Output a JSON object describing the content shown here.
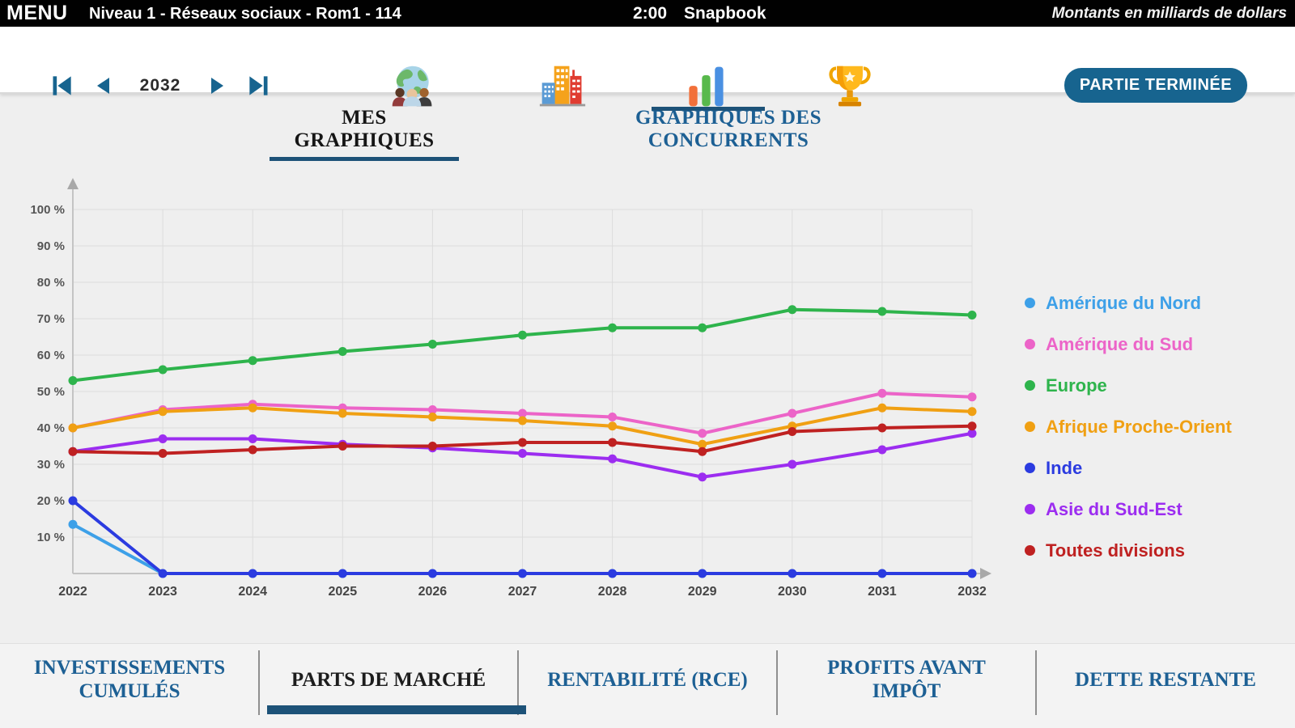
{
  "top_bar": {
    "menu_label": "MENU",
    "title": "Niveau 1 - Réseaux sociaux - Rom1 - 114",
    "time": "2:00",
    "company": "Snapbook",
    "units_note": "Montants en milliards de dollars"
  },
  "toolbar": {
    "year": "2032",
    "nav_icons": [
      "first-year-icon",
      "previous-year-icon",
      "next-year-icon",
      "last-year-icon"
    ],
    "section_icons": [
      "world-markets-icon",
      "company-buildings-icon",
      "charts-icon",
      "trophy-objectives-icon"
    ],
    "active_section": "charts",
    "game_over_label": "PARTIE TERMINÉE"
  },
  "tabs": {
    "my_charts": "MES GRAPHIQUES",
    "competitors": "GRAPHIQUES DES CONCURRENTS",
    "active": "my_charts"
  },
  "chart_data": {
    "type": "line",
    "x": [
      2022,
      2023,
      2024,
      2025,
      2026,
      2027,
      2028,
      2029,
      2030,
      2031,
      2032
    ],
    "yticks": [
      10,
      20,
      30,
      40,
      50,
      60,
      70,
      80,
      90,
      100
    ],
    "y_tick_suffix": " %",
    "ylim": [
      0,
      105
    ],
    "grid": true,
    "legend_position": "right",
    "unit": "%",
    "series": [
      {
        "name": "Amérique du Nord",
        "color": "#3da0e8",
        "values": [
          13.5,
          0,
          0,
          0,
          0,
          0,
          0,
          0,
          0,
          0,
          0
        ]
      },
      {
        "name": "Amérique du Sud",
        "color": "#ec64c8",
        "values": [
          40,
          45,
          46.5,
          45.5,
          45,
          44,
          43,
          38.5,
          44,
          49.5,
          48.5
        ]
      },
      {
        "name": "Europe",
        "color": "#2eb44c",
        "values": [
          53,
          56,
          58.5,
          61,
          63,
          65.5,
          67.5,
          67.5,
          72.5,
          72,
          71
        ]
      },
      {
        "name": "Afrique Proche-Orient",
        "color": "#f0a013",
        "values": [
          40,
          44.5,
          45.5,
          44,
          43,
          42,
          40.5,
          35.5,
          40.5,
          45.5,
          44.5
        ]
      },
      {
        "name": "Inde",
        "color": "#2b3be0",
        "values": [
          20,
          0,
          0,
          0,
          0,
          0,
          0,
          0,
          0,
          0,
          0
        ]
      },
      {
        "name": "Asie du Sud-Est",
        "color": "#9c2df0",
        "values": [
          33.5,
          37,
          37,
          35.5,
          34.5,
          33,
          31.5,
          26.5,
          30,
          34,
          38.5
        ]
      },
      {
        "name": "Toutes divisions",
        "color": "#bf2121",
        "values": [
          33.5,
          33,
          34,
          35,
          35,
          36,
          36,
          33.5,
          39,
          40,
          40.5
        ]
      }
    ]
  },
  "bottom_tabs": [
    {
      "label": "INVESTISSEMENTS CUMULÉS",
      "active": false
    },
    {
      "label": "PARTS DE MARCHÉ",
      "active": true
    },
    {
      "label": "RENTABILITÉ (RCE)",
      "active": false
    },
    {
      "label": "PROFITS AVANT IMPÔT",
      "active": false
    },
    {
      "label": "DETTE RESTANTE",
      "active": false
    }
  ],
  "colors": {
    "accent_teal": "#17648f",
    "active_underline_navy": "#1d5278",
    "tab_text_blue": "#1d6094",
    "content_background": "#efefef",
    "grid_line": "#dcdcdc",
    "axis_line": "#c4c4c4",
    "tick_label": "#555555"
  }
}
